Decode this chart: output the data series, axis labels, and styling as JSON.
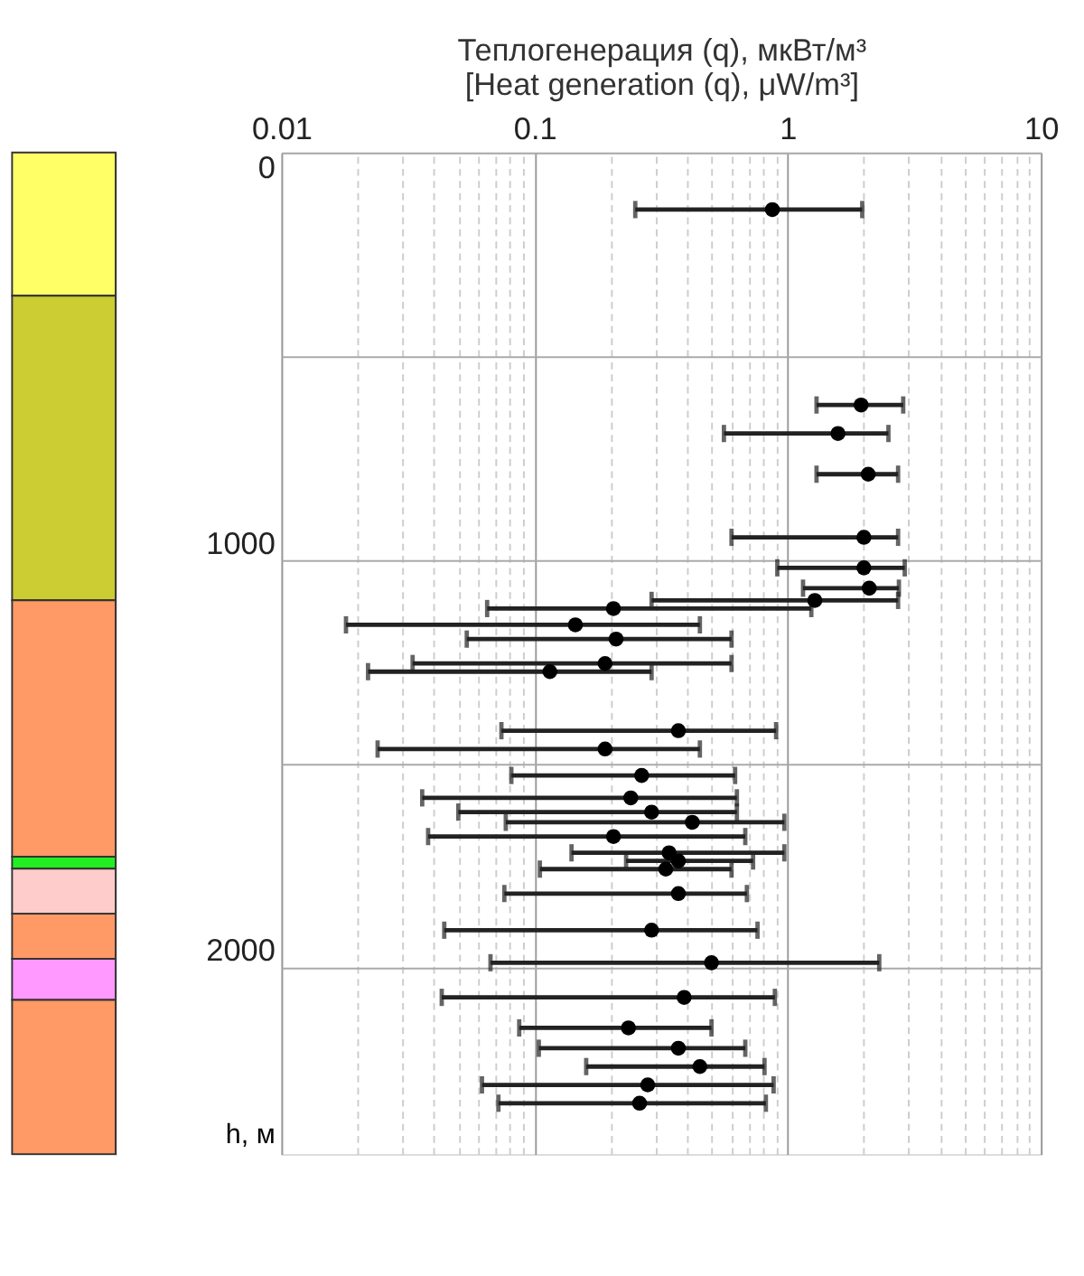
{
  "chart_data": {
    "type": "scatter",
    "xlabel": "Теплогенерация (q), мкВт/м³\n[Heat generation (q), μW/m³]",
    "ylabel": "h, м",
    "color": "#000000",
    "marker": "circle",
    "x": [
      0.87,
      1.95,
      1.58,
      2.08,
      2.0,
      2.0,
      2.1,
      1.28,
      0.205,
      0.145,
      0.21,
      0.19,
      0.115,
      0.37,
      0.19,
      0.265,
      0.24,
      0.29,
      0.42,
      0.205,
      0.34,
      0.37,
      0.33,
      0.37,
      0.29,
      0.5,
      0.39,
      0.235,
      0.37,
      0.45,
      0.28,
      0.26
    ],
    "values": [
      140,
      620,
      690,
      790,
      945,
      1020,
      1070,
      1100,
      1120,
      1160,
      1195,
      1255,
      1275,
      1420,
      1465,
      1530,
      1585,
      1620,
      1645,
      1680,
      1720,
      1740,
      1760,
      1820,
      1910,
      1990,
      2075,
      2150,
      2200,
      2245,
      2290,
      2335
    ],
    "xerrors": [
      [
        0.25,
        1.97
      ],
      [
        1.3,
        2.86
      ],
      [
        0.56,
        2.5
      ],
      [
        1.3,
        2.73
      ],
      [
        0.6,
        2.73
      ],
      [
        0.91,
        2.9
      ],
      [
        1.15,
        2.75
      ],
      [
        0.29,
        2.73
      ],
      [
        0.065,
        1.24
      ],
      [
        0.018,
        0.45
      ],
      [
        0.054,
        0.6
      ],
      [
        0.033,
        0.6
      ],
      [
        0.022,
        0.29
      ],
      [
        0.074,
        0.9
      ],
      [
        0.024,
        0.45
      ],
      [
        0.081,
        0.62
      ],
      [
        0.036,
        0.63
      ],
      [
        0.05,
        0.63
      ],
      [
        0.077,
        0.97
      ],
      [
        0.038,
        0.68
      ],
      [
        0.14,
        0.97
      ],
      [
        0.23,
        0.73
      ],
      [
        0.105,
        0.6
      ],
      [
        0.076,
        0.69
      ],
      [
        0.044,
        0.76
      ],
      [
        0.067,
        2.3
      ],
      [
        0.043,
        0.89
      ],
      [
        0.087,
        0.5
      ],
      [
        0.104,
        0.68
      ],
      [
        0.16,
        0.81
      ],
      [
        0.062,
        0.88
      ],
      [
        0.072,
        0.82
      ]
    ],
    "log": "x",
    "xlim": [
      0.01,
      10
    ],
    "xticks": [
      0.01,
      {
        "value": 0.02,
        "label": null
      },
      {
        "value": 0.03,
        "label": null
      },
      {
        "value": 0.04,
        "label": null
      },
      {
        "value": 0.05,
        "label": null
      },
      {
        "value": 0.06,
        "label": null
      },
      {
        "value": 0.07,
        "label": null
      },
      {
        "value": 0.08,
        "label": null
      },
      {
        "value": 0.09,
        "label": null
      },
      0.1,
      {
        "value": 0.2,
        "label": null
      },
      {
        "value": 0.3,
        "label": null
      },
      {
        "value": 0.4,
        "label": null
      },
      {
        "value": 0.5,
        "label": null
      },
      {
        "value": 0.6,
        "label": null
      },
      {
        "value": 0.7,
        "label": null
      },
      {
        "value": 0.8,
        "label": null
      },
      {
        "value": 0.9,
        "label": null
      },
      1,
      {
        "value": 2,
        "label": null
      },
      {
        "value": 3,
        "label": null
      },
      {
        "value": 4,
        "label": null
      },
      {
        "value": 5,
        "label": null
      },
      {
        "value": 6,
        "label": null
      },
      {
        "value": 7,
        "label": null
      },
      {
        "value": 8,
        "label": null
      },
      {
        "value": 9,
        "label": null
      },
      10
    ],
    "ylim": [
      2460,
      0
    ],
    "yticks": [
      0,
      {
        "value": 500,
        "label": null
      },
      1000,
      {
        "value": 1500,
        "label": null
      },
      2000
    ],
    "grid": true
  }
}
